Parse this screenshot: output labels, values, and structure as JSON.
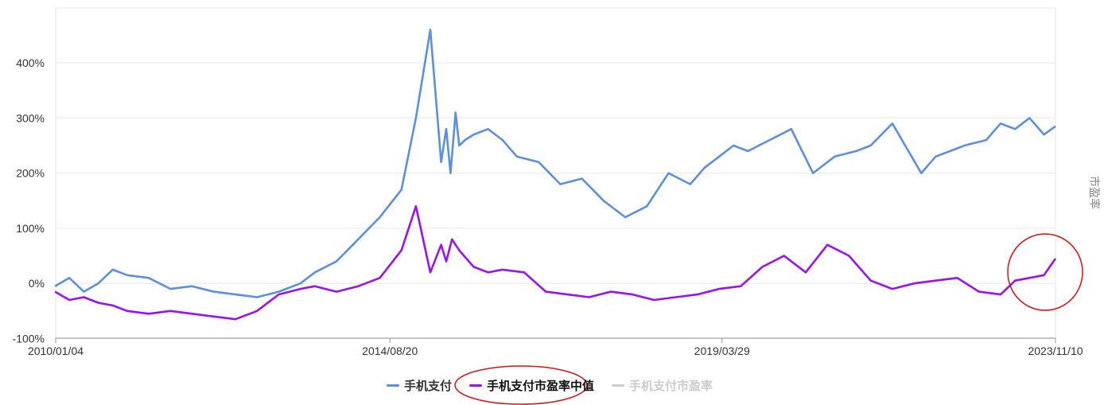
{
  "chart_data": {
    "type": "line",
    "ylabel_right": "市盈率",
    "ylim": [
      -100,
      480
    ],
    "y_ticks": [
      "400%",
      "300%",
      "200%",
      "100%",
      "0%",
      "-100%"
    ],
    "y_tick_values": [
      400,
      300,
      200,
      100,
      0,
      -100
    ],
    "x_ticks": [
      "2010/01/04",
      "2014/08/20",
      "2019/03/29",
      "2023/11/10"
    ],
    "x_tick_positions": [
      2010.01,
      2014.64,
      2019.24,
      2023.86
    ],
    "x_range": [
      2010.01,
      2023.86
    ],
    "grid": true,
    "legend_position": "bottom",
    "series": [
      {
        "name": "手机支付",
        "color": "#5b8fe0",
        "visible": true,
        "x": [
          2010.0,
          2010.2,
          2010.4,
          2010.6,
          2010.8,
          2011.0,
          2011.3,
          2011.6,
          2011.9,
          2012.2,
          2012.5,
          2012.8,
          2013.1,
          2013.4,
          2013.6,
          2013.9,
          2014.2,
          2014.5,
          2014.8,
          2015.0,
          2015.2,
          2015.35,
          2015.42,
          2015.48,
          2015.55,
          2015.6,
          2015.68,
          2015.8,
          2016.0,
          2016.1,
          2016.2,
          2016.4,
          2016.7,
          2017.0,
          2017.3,
          2017.6,
          2017.9,
          2018.2,
          2018.5,
          2018.8,
          2019.0,
          2019.2,
          2019.4,
          2019.6,
          2019.9,
          2020.2,
          2020.5,
          2020.8,
          2021.1,
          2021.3,
          2021.6,
          2022.0,
          2022.2,
          2022.4,
          2022.6,
          2022.9,
          2023.1,
          2023.3,
          2023.5,
          2023.7,
          2023.86
        ],
        "values": [
          -5,
          10,
          -15,
          0,
          25,
          15,
          10,
          -10,
          -5,
          -15,
          -20,
          -25,
          -15,
          0,
          20,
          40,
          80,
          120,
          170,
          300,
          460,
          220,
          280,
          200,
          310,
          250,
          260,
          270,
          280,
          270,
          260,
          230,
          220,
          180,
          190,
          150,
          120,
          140,
          200,
          180,
          210,
          230,
          250,
          240,
          260,
          280,
          200,
          230,
          240,
          250,
          290,
          200,
          230,
          240,
          250,
          260,
          290,
          280,
          300,
          270,
          285
        ]
      },
      {
        "name": "手机支付市盈率中值",
        "color": "#9a12f2",
        "visible": true,
        "x": [
          2010.0,
          2010.2,
          2010.4,
          2010.6,
          2010.8,
          2011.0,
          2011.3,
          2011.6,
          2011.9,
          2012.2,
          2012.5,
          2012.8,
          2013.1,
          2013.4,
          2013.6,
          2013.9,
          2014.2,
          2014.5,
          2014.8,
          2015.0,
          2015.2,
          2015.35,
          2015.42,
          2015.5,
          2015.6,
          2015.8,
          2016.0,
          2016.2,
          2016.5,
          2016.8,
          2017.1,
          2017.4,
          2017.7,
          2018.0,
          2018.3,
          2018.6,
          2018.9,
          2019.2,
          2019.5,
          2019.8,
          2020.1,
          2020.4,
          2020.7,
          2021.0,
          2021.3,
          2021.6,
          2021.9,
          2022.2,
          2022.5,
          2022.8,
          2023.1,
          2023.3,
          2023.5,
          2023.7,
          2023.86
        ],
        "values": [
          -15,
          -30,
          -25,
          -35,
          -40,
          -50,
          -55,
          -50,
          -55,
          -60,
          -65,
          -50,
          -20,
          -10,
          -5,
          -15,
          -5,
          10,
          60,
          140,
          20,
          70,
          40,
          80,
          60,
          30,
          20,
          25,
          20,
          -15,
          -20,
          -25,
          -15,
          -20,
          -30,
          -25,
          -20,
          -10,
          -5,
          30,
          50,
          20,
          70,
          50,
          5,
          -10,
          0,
          5,
          10,
          -15,
          -20,
          5,
          10,
          15,
          45
        ]
      },
      {
        "name": "手机支付市盈率",
        "color": "#cccccc",
        "visible": false,
        "x": [],
        "values": []
      }
    ]
  },
  "annotations": [
    {
      "kind": "circle",
      "color": "#dd1111",
      "target": "series-end"
    },
    {
      "kind": "ellipse",
      "color": "#dd1111",
      "target": "legend-item-1"
    }
  ],
  "legend": {
    "items": [
      {
        "label": "手机支付",
        "color": "#5b8fe0",
        "text_color": "#333333"
      },
      {
        "label": "手机支付市盈率中值",
        "color": "#9a12f2",
        "text_color": "#111111"
      },
      {
        "label": "手机支付市盈率",
        "color": "#cccccc",
        "text_color": "#cccccc"
      }
    ]
  }
}
